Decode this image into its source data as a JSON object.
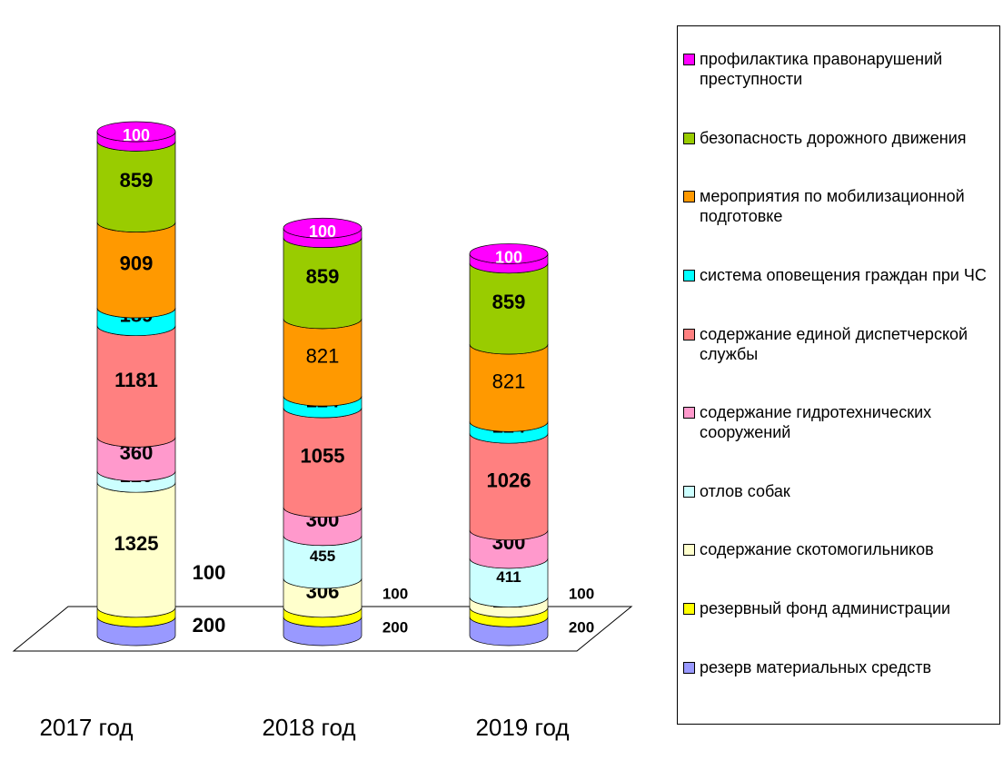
{
  "chart_data": {
    "type": "stacked-cylinder",
    "categories": [
      "2017 год",
      "2018 год",
      "2019 год"
    ],
    "series": [
      {
        "name": "резерв материальных средств",
        "color": "#9999ff",
        "values": [
          200,
          200,
          200
        ]
      },
      {
        "name": "резервный фонд администрации",
        "color": "#ffff00",
        "values": [
          100,
          100,
          100
        ]
      },
      {
        "name": "содержание скотомогильников",
        "color": "#ffffcc",
        "values": [
          1325,
          306,
          108
        ]
      },
      {
        "name": "отлов собак",
        "color": "#ccffff",
        "values": [
          120,
          455,
          411
        ]
      },
      {
        "name": "содержание гидротехнических сооружений",
        "color": "#ff99cc",
        "values": [
          360,
          300,
          300
        ]
      },
      {
        "name": "содержание единой диспетчерской службы",
        "color": "#ff8080",
        "values": [
          1181,
          1055,
          1026
        ]
      },
      {
        "name": "система оповещения граждан при ЧС",
        "color": "#00ffff",
        "values": [
          189,
          124,
          124
        ]
      },
      {
        "name": "мероприятия по мобилизационной подготовке",
        "color": "#ff9900",
        "values": [
          909,
          821,
          821
        ]
      },
      {
        "name": "безопасность дорожного движения",
        "color": "#99cc00",
        "values": [
          859,
          859,
          859
        ]
      },
      {
        "name": "профилактика правонарушений преступности",
        "color": "#ff00ff",
        "values": [
          100,
          100,
          100
        ]
      }
    ],
    "legend": "right"
  }
}
